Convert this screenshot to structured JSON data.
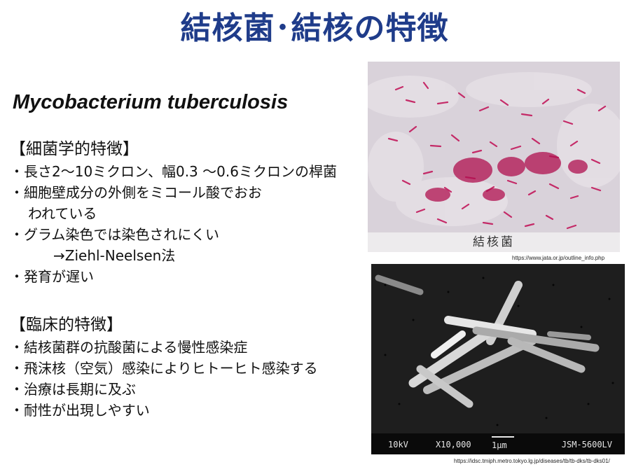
{
  "title": "結核菌･結核の特徴",
  "latin_name": "Mycobacterium tuberculosis",
  "bacteriology": {
    "heading": "【細菌学的特徴】",
    "items": [
      "・長さ2〜10ミクロン、幅0.3 〜0.6ミクロンの桿菌",
      "・細胞壁成分の外側をミコール酸でおお",
      "われている",
      "・グラム染色では染色されにくい",
      "→Ziehl-Neelsen法",
      "・発育が遅い"
    ]
  },
  "clinical": {
    "heading": "【臨床的特徴】",
    "items": [
      "・結核菌群の抗酸菌による慢性感染症",
      "・飛沫核（空気）感染によりヒトーヒト感染する",
      "・治療は長期に及ぶ",
      "・耐性が出現しやすい"
    ]
  },
  "image1": {
    "label": "結核菌",
    "credit": "https://www.jata.or.jp/outline_info.php"
  },
  "image2": {
    "kv": "10kV",
    "magnification": "X10,000",
    "scale": "1μm",
    "model": "JSM-5600LV",
    "credit": "https://idsc.tmiph.metro.tokyo.lg.jp/diseases/tb/tb-dks/tb-dks01/"
  },
  "colors": {
    "title": "#1f3c8a",
    "stain": "#c2185b"
  }
}
